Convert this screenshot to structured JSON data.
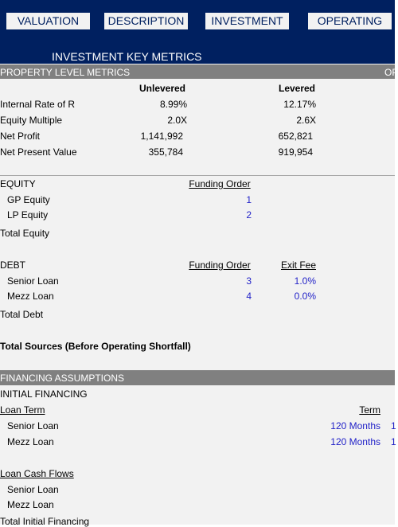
{
  "nav": {
    "tabs": [
      "VALUATION",
      "DESCRIPTION",
      "INVESTMENT",
      "OPERATING"
    ]
  },
  "header": {
    "title": "INVESTMENT KEY METRICS"
  },
  "property_level_metrics": {
    "title": "PROPERTY LEVEL METRICS",
    "next_title": "OP",
    "columns": [
      "Unlevered",
      "Levered"
    ],
    "rows": [
      [
        "Internal Rate of R",
        "8.99%",
        "12.17%"
      ],
      [
        "Equity Multiple",
        "2.0X",
        "2.6X"
      ],
      [
        "Net Profit",
        "1,141,992",
        "652,821"
      ],
      [
        "Net Present Value",
        "355,784",
        "919,954"
      ]
    ]
  },
  "equity": {
    "title": "EQUITY",
    "columns": [
      "Funding Order"
    ],
    "rows": [
      [
        "GP Equity",
        "1"
      ],
      [
        "LP Equity",
        "2"
      ]
    ],
    "total": "Total Equity"
  },
  "debt": {
    "title": "DEBT",
    "columns": [
      "Funding Order",
      "Exit Fee"
    ],
    "rows": [
      [
        "Senior Loan",
        "3",
        "1.0%"
      ],
      [
        "Mezz Loan",
        "4",
        "0.0%"
      ]
    ],
    "total": "Total Debt"
  },
  "total_sources": "Total Sources (Before Operating Shortfall)",
  "financing_assumptions": {
    "title": "FINANCING ASSUMPTIONS",
    "subtitle": "INITIAL FINANCING",
    "loan_term": {
      "label": "Loan Term",
      "columns": [
        "Term"
      ],
      "rows": [
        [
          "Senior Loan",
          "120 Months",
          "1"
        ],
        [
          "Mezz Loan",
          "120 Months",
          "1"
        ]
      ]
    },
    "loan_cash_flows": {
      "label": "Loan Cash Flows",
      "rows": [
        "Senior Loan",
        "Mezz Loan"
      ]
    },
    "total": "Total Initial Financing"
  }
}
